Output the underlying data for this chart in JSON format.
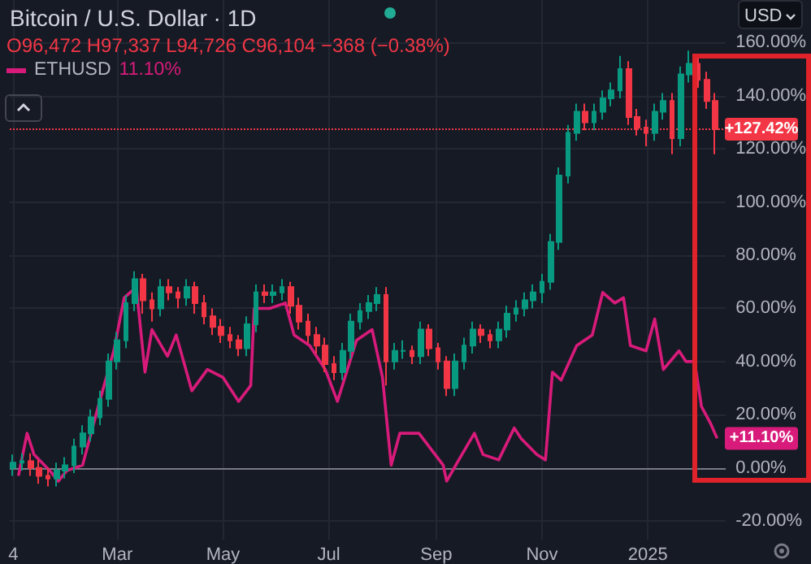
{
  "chart_data": {
    "type": "candlestick",
    "title": "Bitcoin / U.S. Dollar · 1D",
    "subtitle": "O96,472 H97,337 L94,726 C96,104 −368 (−0.38%)",
    "annotations": [
      "11.10%",
      "USD",
      {
        "text": "+11.10%",
        "x": "2025-02-10",
        "y": 11.1
      }
    ],
    "series": [
      {
        "colors": [
          "#089981",
          "#089981",
          "#f23645",
          "#f23645",
          "#f23645",
          "#089981",
          "#089981",
          "#089981",
          "#089981",
          "#089981",
          "#089981",
          "#089981",
          "#089981",
          "#089981",
          "#089981",
          "#f23645",
          "#f23645",
          "#089981",
          "#f23645",
          "#f23645",
          "#089981",
          "#f23645",
          "#f23645",
          "#f23645",
          "#f23645",
          "#f23645",
          "#f23645",
          "#089981",
          "#089981",
          "#f23645",
          "#089981",
          "#089981",
          "#f23645",
          "#f23645",
          "#f23645",
          "#f23645",
          "#f23645",
          "#f23645",
          "#089981",
          "#089981",
          "#089981",
          "#089981",
          "#089981",
          "#f23645",
          "#089981",
          "#089981",
          "#f23645",
          "#089981",
          "#f23645",
          "#f23645",
          "#f23645",
          "#089981",
          "#089981",
          "#089981",
          "#f23645",
          "#f23645",
          "#089981",
          "#089981",
          "#089981",
          "#089981",
          "#089981",
          "#089981",
          "#089981",
          "#089981",
          "#089981",
          "#089981",
          "#f23645",
          "#089981",
          "#089981",
          "#089981",
          "#089981",
          "#f23645",
          "#f23645",
          "#f23645",
          "#089981",
          "#089981",
          "#f23645",
          "#089981",
          "#089981",
          "#f23645",
          "#f23645",
          "#f23645"
        ],
        "x": [
          "2024-01-01",
          "2024-01-06",
          "2024-01-11",
          "2024-01-16",
          "2024-01-21",
          "2024-01-26",
          "2024-01-31",
          "2024-02-05",
          "2024-02-10",
          "2024-02-15",
          "2024-02-20",
          "2024-02-25",
          "2024-03-01",
          "2024-03-06",
          "2024-03-11",
          "2024-03-16",
          "2024-03-21",
          "2024-03-26",
          "2024-03-31",
          "2024-04-05",
          "2024-04-10",
          "2024-04-15",
          "2024-04-20",
          "2024-04-25",
          "2024-04-30",
          "2024-05-05",
          "2024-05-10",
          "2024-05-15",
          "2024-05-20",
          "2024-05-25",
          "2024-05-30",
          "2024-06-04",
          "2024-06-09",
          "2024-06-14",
          "2024-06-19",
          "2024-06-24",
          "2024-06-29",
          "2024-07-04",
          "2024-07-09",
          "2024-07-14",
          "2024-07-19",
          "2024-07-24",
          "2024-07-29",
          "2024-08-03",
          "2024-08-08",
          "2024-08-13",
          "2024-08-18",
          "2024-08-23",
          "2024-08-28",
          "2024-09-02",
          "2024-09-07",
          "2024-09-12",
          "2024-09-17",
          "2024-09-22",
          "2024-09-27",
          "2024-10-02",
          "2024-10-07",
          "2024-10-12",
          "2024-10-17",
          "2024-10-22",
          "2024-10-27",
          "2024-11-01",
          "2024-11-06",
          "2024-11-11",
          "2024-11-16",
          "2024-11-21",
          "2024-11-26",
          "2024-12-01",
          "2024-12-06",
          "2024-12-11",
          "2024-12-16",
          "2024-12-21",
          "2024-12-26",
          "2024-12-31",
          "2025-01-05",
          "2025-01-10",
          "2025-01-15",
          "2025-01-20",
          "2025-01-25",
          "2025-01-30",
          "2025-02-04",
          "2025-02-09"
        ],
        "ohlc": [
          [
            0,
            5,
            -3,
            2
          ],
          [
            2,
            5.5,
            -1,
            2.5
          ],
          [
            2.5,
            5.5,
            -3,
            0
          ],
          [
            0,
            3,
            -6,
            -3
          ],
          [
            -3,
            0,
            -7,
            -4
          ],
          [
            -4,
            2,
            -7,
            -1
          ],
          [
            -1,
            4,
            -4,
            1
          ],
          [
            1,
            11,
            -2,
            8
          ],
          [
            8,
            16,
            5,
            13
          ],
          [
            13,
            22,
            10,
            19
          ],
          [
            19,
            29,
            16,
            26
          ],
          [
            26,
            43,
            23,
            40
          ],
          [
            40,
            51,
            37,
            48
          ],
          [
            48,
            65,
            45,
            62
          ],
          [
            62,
            74,
            59,
            71
          ],
          [
            71,
            73,
            58,
            63
          ],
          [
            63,
            66,
            55,
            60
          ],
          [
            60,
            71,
            57,
            68
          ],
          [
            68,
            71,
            63,
            66
          ],
          [
            66,
            68,
            60,
            64
          ],
          [
            64,
            71,
            61,
            68
          ],
          [
            68,
            70,
            58,
            62
          ],
          [
            62,
            65,
            54,
            57
          ],
          [
            57,
            60,
            50,
            53
          ],
          [
            53,
            56,
            47,
            50
          ],
          [
            50,
            53,
            45,
            48
          ],
          [
            48,
            50,
            42,
            45
          ],
          [
            45,
            57,
            42,
            54
          ],
          [
            54,
            69,
            51,
            66
          ],
          [
            66,
            69,
            62,
            65
          ],
          [
            65,
            69,
            62,
            66
          ],
          [
            66,
            71,
            63,
            68
          ],
          [
            68,
            70,
            58,
            61
          ],
          [
            61,
            64,
            52,
            55
          ],
          [
            55,
            58,
            47,
            50
          ],
          [
            50,
            53,
            43,
            46
          ],
          [
            46,
            49,
            36,
            39
          ],
          [
            39,
            42,
            33,
            36
          ],
          [
            36,
            47,
            33,
            44
          ],
          [
            44,
            58,
            41,
            55
          ],
          [
            55,
            62,
            52,
            59
          ],
          [
            59,
            65,
            56,
            62
          ],
          [
            62,
            68,
            59,
            65
          ],
          [
            65,
            68,
            31,
            40
          ],
          [
            40,
            47,
            37,
            44
          ],
          [
            44,
            48,
            41,
            44
          ],
          [
            44,
            46,
            39,
            42
          ],
          [
            42,
            55,
            39,
            52
          ],
          [
            52,
            54,
            42,
            45
          ],
          [
            45,
            47,
            37,
            40
          ],
          [
            40,
            42,
            27,
            30
          ],
          [
            30,
            43,
            27,
            40
          ],
          [
            40,
            49,
            37,
            46
          ],
          [
            46,
            55,
            43,
            52
          ],
          [
            52,
            54,
            47,
            50
          ],
          [
            50,
            52,
            45,
            48
          ],
          [
            48,
            55,
            45,
            52
          ],
          [
            52,
            61,
            49,
            58
          ],
          [
            58,
            63,
            55,
            60
          ],
          [
            60,
            66,
            57,
            63
          ],
          [
            63,
            69,
            60,
            66
          ],
          [
            66,
            73,
            62,
            70
          ],
          [
            70,
            88,
            67,
            85
          ],
          [
            85,
            113,
            82,
            110
          ],
          [
            110,
            129,
            107,
            126
          ],
          [
            126,
            137,
            123,
            134
          ],
          [
            134,
            137,
            127,
            130
          ],
          [
            130,
            137,
            127,
            134
          ],
          [
            134,
            142,
            131,
            139
          ],
          [
            139,
            145,
            136,
            142
          ],
          [
            142,
            155,
            139,
            150
          ],
          [
            150,
            153,
            129,
            132
          ],
          [
            132,
            135,
            125,
            128
          ],
          [
            128,
            131,
            121,
            126
          ],
          [
            126,
            137,
            123,
            134
          ],
          [
            134,
            141,
            131,
            138
          ],
          [
            138,
            141,
            118,
            124
          ],
          [
            124,
            151,
            121,
            148
          ],
          [
            148,
            157,
            145,
            152
          ],
          [
            152,
            155,
            143,
            146
          ],
          [
            146,
            149,
            135,
            138
          ],
          [
            138,
            141,
            118,
            127.42
          ]
        ]
      },
      {
        "type": "line",
        "name": "ETHUSD",
        "color": "#d81b7a",
        "x": [
          "2024-01-04",
          "2024-01-09",
          "2024-01-13",
          "2024-01-22",
          "2024-01-27",
          "2024-02-01",
          "2024-02-10",
          "2024-02-19",
          "2024-02-28",
          "2024-03-05",
          "2024-03-12",
          "2024-03-17",
          "2024-03-21",
          "2024-03-30",
          "2024-04-04",
          "2024-04-13",
          "2024-04-22",
          "2024-05-01",
          "2024-05-10",
          "2024-05-17",
          "2024-05-19",
          "2024-05-28",
          "2024-06-06",
          "2024-06-11",
          "2024-06-20",
          "2024-06-29",
          "2024-07-06",
          "2024-07-17",
          "2024-07-26",
          "2024-08-01",
          "2024-08-06",
          "2024-08-11",
          "2024-08-22",
          "2024-09-05",
          "2024-09-07",
          "2024-09-14",
          "2024-09-23",
          "2024-09-28",
          "2024-10-07",
          "2024-10-16",
          "2024-10-20",
          "2024-10-29",
          "2024-11-03",
          "2024-11-07",
          "2024-11-12",
          "2024-11-21",
          "2024-11-30",
          "2024-12-06",
          "2024-12-13",
          "2024-12-18",
          "2024-12-22",
          "2024-12-31",
          "2025-01-05",
          "2025-01-10",
          "2025-01-19",
          "2025-01-23",
          "2025-01-28",
          "2025-02-01",
          "2025-02-06",
          "2025-02-10"
        ],
        "values": [
          -3,
          13,
          5,
          -1,
          -5,
          -1,
          1,
          23,
          44,
          64,
          68,
          36,
          52,
          42,
          50,
          29,
          37,
          34,
          25,
          31,
          60,
          60,
          62,
          50,
          46,
          37,
          25,
          48,
          52,
          34,
          1,
          13,
          13,
          1,
          -5,
          3,
          13,
          5,
          3,
          15,
          11,
          5,
          3,
          36,
          33,
          46,
          50,
          66,
          62,
          64,
          46,
          44,
          56,
          37,
          44,
          40,
          40,
          23,
          17,
          11.1
        ]
      }
    ],
    "xlim": [
      "2023-12-30",
      "2025-02-15"
    ],
    "xticks": [
      {
        "value": "2024-01-01",
        "label": "4"
      },
      {
        "value": "2024-03-01",
        "label": "Mar"
      },
      {
        "value": "2024-05-01",
        "label": "May"
      },
      {
        "value": "2024-07-01",
        "label": "Jul"
      },
      {
        "value": "2024-09-01",
        "label": "Sep"
      },
      {
        "value": "2024-11-01",
        "label": "Nov"
      },
      {
        "value": "2025-01-01",
        "label": "2025"
      }
    ],
    "ylim": [
      -27,
      176
    ],
    "yticks": [
      {
        "value": -20,
        "label": "-20.00%"
      },
      {
        "value": 0,
        "label": "0.00%"
      },
      {
        "value": 20,
        "label": "20.00%"
      },
      {
        "value": 40,
        "label": "40.00%"
      },
      {
        "value": 60,
        "label": "60.00%"
      },
      {
        "value": 80,
        "label": "80.00%"
      },
      {
        "value": 100,
        "label": "100.00%"
      },
      {
        "value": 120,
        "label": "120.00%"
      },
      {
        "value": 140,
        "label": "140.00%"
      },
      {
        "value": 160,
        "label": "160.00%"
      }
    ],
    "ref_lines": [
      {
        "axis": "y",
        "value": 127.42,
        "label": "+127.42%",
        "color": "#f23645",
        "line_style": "dotted"
      },
      {
        "axis": "y",
        "value": 0,
        "color": "#787b86",
        "line_style": "solid"
      }
    ],
    "grid": true,
    "legend": "top left"
  }
}
